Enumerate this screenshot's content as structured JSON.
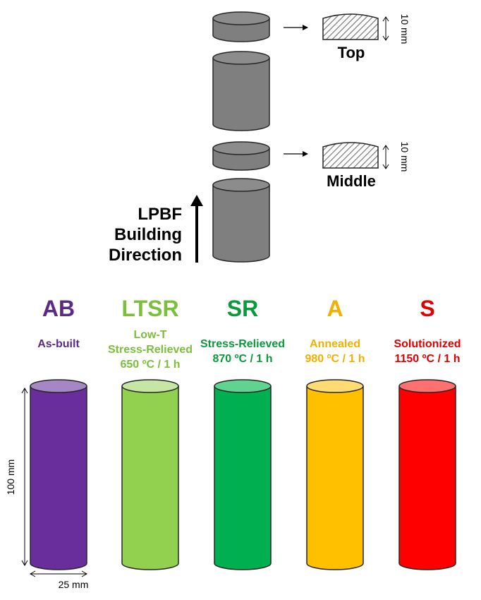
{
  "specimen_diagram": {
    "sections": [
      {
        "label": "Top",
        "thickness": "10 mm"
      },
      {
        "label": "Middle",
        "thickness": "10 mm"
      }
    ],
    "direction_label": [
      "LPBF",
      "Building",
      "Direction"
    ]
  },
  "conditions": [
    {
      "code": "AB",
      "lines": [
        "As-built"
      ],
      "color": "#5b2a86",
      "body": "#6a2e9c",
      "top": "#a487c4"
    },
    {
      "code": "LTSR",
      "lines": [
        "Low-T",
        "Stress-Relieved",
        "650 ºC / 1 h"
      ],
      "color": "#7cbf3c",
      "body": "#92d050",
      "top": "#c6e7a3"
    },
    {
      "code": "SR",
      "lines": [
        "Stress-Relieved",
        "870 ºC / 1 h"
      ],
      "color": "#0a9a3c",
      "body": "#00b050",
      "top": "#5fd38f"
    },
    {
      "code": "A",
      "lines": [
        "Annealed",
        "980 ºC / 1 h"
      ],
      "color": "#f2b000",
      "body": "#ffc000",
      "top": "#ffdc73"
    },
    {
      "code": "S",
      "lines": [
        "Solutionized",
        "1150 ºC / 1 h"
      ],
      "color": "#e00000",
      "body": "#ff0000",
      "top": "#ff7070"
    }
  ],
  "dimensions": {
    "height": "100 mm",
    "diameter": "25 mm"
  },
  "colors": {
    "specimen_gray": "#7f7f7f",
    "specimen_top": "#8c8c8c",
    "outline": "#262626"
  }
}
